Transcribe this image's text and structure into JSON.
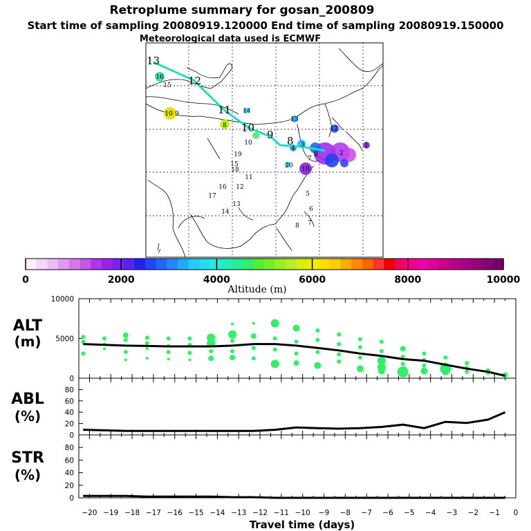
{
  "title": {
    "line1": "Retroplume summary for gosan_200809",
    "line2": "Start time of sampling 20080919.120000     End time of sampling 20080919.150000",
    "line3": "Meteorological data used is ECMWF"
  },
  "colors": {
    "plume": "#33ee66",
    "track": "#22ddbb",
    "line": "#000000"
  },
  "map": {
    "track_labels": [
      "13",
      "12",
      "11",
      "10",
      "9",
      "8"
    ],
    "day_labels": [
      "16",
      "15",
      "10",
      "9",
      "14",
      "8",
      "13",
      "12",
      "10",
      "19",
      "15",
      "18",
      "11",
      "16",
      "12",
      "17",
      "13",
      "14",
      "20",
      "10",
      "8",
      "7",
      "5",
      "6",
      "8",
      "7",
      "4",
      "3",
      "2",
      "1"
    ]
  },
  "colorbar": {
    "tick_labels": [
      "0",
      "2000",
      "4000",
      "6000",
      "8000",
      "10000"
    ],
    "label": "Altitude (m)",
    "range": [
      0,
      10000
    ]
  },
  "chart_data": [
    {
      "type": "scatter+line",
      "panel": "ALT",
      "ylabel_main": "ALT",
      "ylabel_unit": "(m)",
      "ylim": [
        0,
        10000
      ],
      "yticks": [
        "0",
        "5000",
        "10000"
      ],
      "x": [
        -20.3,
        -19.3,
        -18.3,
        -17.3,
        -16.3,
        -15.3,
        -14.3,
        -13.3,
        -12.3,
        -11.3,
        -10.3,
        -9.3,
        -8.3,
        -7.3,
        -6.3,
        -5.3,
        -4.3,
        -3.3,
        -2.3,
        -1.3,
        -0.5
      ],
      "median_line": [
        4300,
        4200,
        4100,
        4050,
        4000,
        4000,
        4000,
        4100,
        4300,
        4300,
        4100,
        3800,
        3500,
        3100,
        2800,
        2400,
        2200,
        1700,
        1200,
        800,
        300
      ],
      "plume_points": [
        [
          -20.3,
          5200,
          3
        ],
        [
          -20.3,
          4600,
          3
        ],
        [
          -20.3,
          3100,
          3
        ],
        [
          -19.3,
          5000,
          3
        ],
        [
          -19.3,
          4300,
          2
        ],
        [
          -19.3,
          3700,
          2
        ],
        [
          -18.3,
          5400,
          4
        ],
        [
          -18.3,
          4800,
          3
        ],
        [
          -18.3,
          3300,
          3
        ],
        [
          -18.3,
          2300,
          2
        ],
        [
          -17.3,
          5100,
          3
        ],
        [
          -17.3,
          4400,
          3
        ],
        [
          -17.3,
          3700,
          2
        ],
        [
          -17.3,
          2500,
          2
        ],
        [
          -16.3,
          5000,
          3
        ],
        [
          -16.3,
          4100,
          2
        ],
        [
          -16.3,
          3300,
          3
        ],
        [
          -16.3,
          2400,
          2
        ],
        [
          -15.3,
          5000,
          3
        ],
        [
          -15.3,
          4200,
          3
        ],
        [
          -15.3,
          3200,
          3
        ],
        [
          -15.3,
          2300,
          2
        ],
        [
          -14.3,
          5100,
          6
        ],
        [
          -14.3,
          4400,
          6
        ],
        [
          -14.3,
          3400,
          3
        ],
        [
          -14.3,
          2500,
          4
        ],
        [
          -13.3,
          6800,
          2
        ],
        [
          -13.3,
          5500,
          6
        ],
        [
          -13.3,
          4700,
          3
        ],
        [
          -13.3,
          3400,
          3
        ],
        [
          -13.3,
          2600,
          4
        ],
        [
          -12.3,
          6900,
          2
        ],
        [
          -12.3,
          5300,
          4
        ],
        [
          -12.3,
          3800,
          3
        ],
        [
          -12.3,
          2500,
          3
        ],
        [
          -11.3,
          6900,
          6
        ],
        [
          -11.3,
          5000,
          3
        ],
        [
          -11.3,
          3600,
          3
        ],
        [
          -11.3,
          1800,
          6
        ],
        [
          -10.3,
          6300,
          5
        ],
        [
          -10.3,
          4600,
          3
        ],
        [
          -10.3,
          3100,
          3
        ],
        [
          -10.3,
          1900,
          4
        ],
        [
          -9.3,
          6000,
          3
        ],
        [
          -9.3,
          4800,
          3
        ],
        [
          -9.3,
          3300,
          3
        ],
        [
          -9.3,
          1600,
          5
        ],
        [
          -8.3,
          5500,
          3
        ],
        [
          -8.3,
          4300,
          3
        ],
        [
          -8.3,
          3000,
          3
        ],
        [
          -8.3,
          2100,
          3
        ],
        [
          -7.3,
          4900,
          3
        ],
        [
          -7.3,
          3900,
          3
        ],
        [
          -7.3,
          2600,
          3
        ],
        [
          -7.3,
          1200,
          5
        ],
        [
          -6.3,
          4600,
          3
        ],
        [
          -6.3,
          3400,
          3
        ],
        [
          -6.3,
          2200,
          6
        ],
        [
          -6.3,
          1400,
          6
        ],
        [
          -6.3,
          900,
          5
        ],
        [
          -5.3,
          3700,
          4
        ],
        [
          -5.3,
          2700,
          3
        ],
        [
          -5.3,
          1800,
          3
        ],
        [
          -5.3,
          800,
          8
        ],
        [
          -4.3,
          3100,
          3
        ],
        [
          -4.3,
          2300,
          3
        ],
        [
          -4.3,
          1600,
          3
        ],
        [
          -4.3,
          900,
          5
        ],
        [
          -3.3,
          2600,
          3
        ],
        [
          -3.3,
          1700,
          3
        ],
        [
          -3.3,
          1200,
          8
        ],
        [
          -3.3,
          800,
          5
        ],
        [
          -2.3,
          1900,
          3
        ],
        [
          -2.3,
          1300,
          3
        ],
        [
          -2.3,
          800,
          3
        ],
        [
          -1.3,
          1000,
          3
        ],
        [
          -1.3,
          700,
          3
        ],
        [
          -0.5,
          400,
          4
        ]
      ]
    },
    {
      "type": "line",
      "panel": "ABL",
      "ylabel_main": "ABL",
      "ylabel_unit": "(%)",
      "ylim": [
        0,
        100
      ],
      "yticks": [
        "0",
        "20",
        "40",
        "60",
        "80"
      ],
      "x": [
        -20.3,
        -19.3,
        -18.3,
        -17.3,
        -16.3,
        -15.3,
        -14.3,
        -13.3,
        -12.3,
        -11.3,
        -10.3,
        -9.3,
        -8.3,
        -7.3,
        -6.3,
        -5.3,
        -4.3,
        -3.3,
        -2.3,
        -1.3,
        -0.5
      ],
      "values": [
        9,
        8,
        7,
        7,
        7,
        7,
        7,
        7,
        7,
        9,
        13,
        12,
        11,
        12,
        14,
        18,
        12,
        23,
        21,
        27,
        40
      ]
    },
    {
      "type": "line",
      "panel": "STR",
      "ylabel_main": "STR",
      "ylabel_unit": "(%)",
      "ylim": [
        0,
        100
      ],
      "yticks": [
        "0",
        "20",
        "40",
        "60",
        "80"
      ],
      "x": [
        -20.3,
        -19.3,
        -18.3,
        -17.3,
        -16.3,
        -15.3,
        -14.3,
        -13.3,
        -12.3,
        -11.3,
        -10.3,
        -9.3,
        -8.3,
        -7.3,
        -6.3,
        -5.3,
        -4.3,
        -3.3,
        -2.3,
        -1.3,
        -0.5
      ],
      "values": [
        3,
        3,
        3,
        2,
        2,
        2,
        2,
        1,
        1,
        0,
        0,
        0,
        0,
        0,
        0,
        0,
        0,
        0,
        0,
        0,
        0
      ]
    }
  ],
  "x_axis": {
    "label": "Travel time (days)",
    "range": [
      -20.5,
      0
    ],
    "tick_labels": [
      "−20",
      "−19",
      "−18",
      "−17",
      "−16",
      "−15",
      "−14",
      "−13",
      "−12",
      "−11",
      "−10",
      "−9",
      "−8",
      "−7",
      "−6",
      "−5",
      "−4",
      "−3",
      "−2",
      "−1",
      "0"
    ]
  }
}
